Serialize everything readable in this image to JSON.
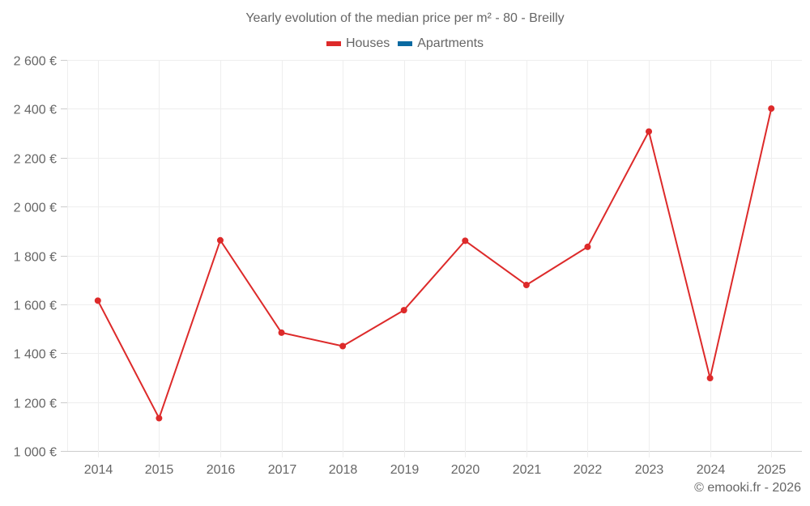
{
  "chart_data": {
    "type": "line",
    "title": "Yearly evolution of the median price per m² - 80 - Breilly",
    "xlabel": "",
    "ylabel": "",
    "categories": [
      "2014",
      "2015",
      "2016",
      "2017",
      "2018",
      "2019",
      "2020",
      "2021",
      "2022",
      "2023",
      "2024",
      "2025"
    ],
    "series": [
      {
        "name": "Houses",
        "color": "#dd2a2a",
        "values": [
          1615,
          1134,
          1862,
          1484,
          1429,
          1576,
          1860,
          1679,
          1835,
          2307,
          1298,
          2401
        ]
      },
      {
        "name": "Apartments",
        "color": "#0a6aa1",
        "values": []
      }
    ],
    "ylim": [
      1000,
      2600
    ],
    "yticks": [
      1000,
      1200,
      1400,
      1600,
      1800,
      2000,
      2200,
      2400,
      2600
    ],
    "ytick_labels": [
      "1 000 €",
      "1 200 €",
      "1 400 €",
      "1 600 €",
      "1 800 €",
      "2 000 €",
      "2 200 €",
      "2 400 €",
      "2 600 €"
    ],
    "grid": true,
    "legend_position": "top"
  },
  "legend": [
    {
      "label": "Houses",
      "color": "#dd2a2a"
    },
    {
      "label": "Apartments",
      "color": "#0a6aa1"
    }
  ],
  "credit": "© emooki.fr - 2026"
}
